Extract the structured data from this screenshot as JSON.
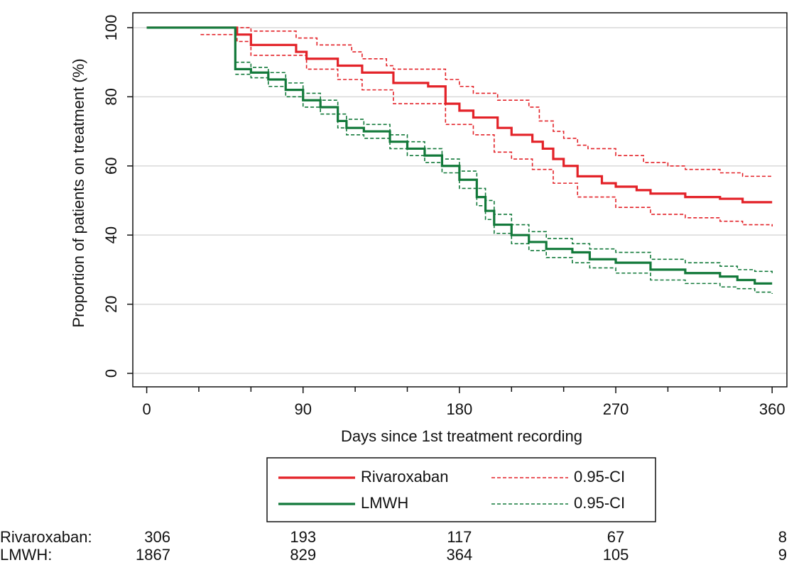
{
  "chart_data": {
    "type": "step",
    "x_label": "Days since 1st treatment recording",
    "y_label": "Proportion of patients on treatment (%)",
    "xlim": [
      -8,
      368.5
    ],
    "ylim": [
      -3.9,
      104.3
    ],
    "xticks": [
      0,
      90,
      180,
      270,
      360
    ],
    "xminorticks": [
      30,
      60,
      120,
      150,
      210,
      240,
      300,
      330
    ],
    "yticks": [
      0,
      20,
      40,
      60,
      80,
      100
    ],
    "grid": true,
    "series": [
      {
        "name": "Rivaroxaban",
        "color": "#e32228",
        "style": "solid",
        "x": [
          0,
          52,
          60,
          86,
          92,
          110,
          124,
          142,
          162,
          172,
          180,
          188,
          202,
          210,
          222,
          228,
          234,
          240,
          248,
          262,
          270,
          282,
          290,
          310,
          330,
          343,
          360
        ],
        "values": [
          100,
          98,
          95,
          93,
          91,
          89,
          87,
          84,
          83,
          78,
          76,
          74,
          71,
          69,
          67,
          65,
          62,
          60,
          57,
          55,
          54,
          53,
          52,
          51,
          50.5,
          49.5,
          49.5
        ]
      },
      {
        "name": "0.95-CI",
        "color": "#e32228",
        "style": "dashed",
        "x": [
          31,
          52,
          60,
          92,
          110,
          124,
          142,
          172,
          188,
          200,
          210,
          222,
          234,
          248,
          270,
          290,
          310,
          330,
          343,
          360
        ],
        "values": [
          98,
          96,
          92,
          88,
          85,
          82,
          78,
          72,
          69,
          64,
          62,
          59,
          55,
          51,
          48,
          46,
          45,
          44,
          43,
          42.5
        ]
      },
      {
        "name": "LMWH",
        "color": "#12793a",
        "style": "solid",
        "x": [
          0,
          51,
          60,
          70,
          80,
          90,
          100,
          110,
          115,
          125,
          140,
          150,
          160,
          170,
          180,
          190,
          195,
          200,
          210,
          220,
          230,
          245,
          255,
          270,
          290,
          310,
          330,
          340,
          350,
          360
        ],
        "values": [
          100,
          88,
          87,
          85,
          82,
          79,
          77,
          73,
          71,
          70,
          67,
          65,
          63,
          60,
          56,
          51,
          47,
          43,
          40,
          38,
          36,
          35,
          33,
          32,
          30,
          29,
          28,
          27,
          26,
          26
        ]
      },
      {
        "name": "0.95-CI",
        "color": "#12793a",
        "style": "dashed",
        "x": [
          51,
          60,
          70,
          80,
          90,
          100,
          110,
          115,
          125,
          140,
          150,
          160,
          170,
          180,
          190,
          195,
          200,
          210,
          220,
          230,
          245,
          255,
          270,
          290,
          310,
          330,
          340,
          350,
          360
        ],
        "values": [
          86.5,
          85.5,
          83,
          80,
          77,
          75,
          71,
          69,
          68,
          65,
          63,
          61,
          58,
          53.5,
          48.5,
          44.5,
          40.5,
          37.5,
          35.5,
          33.5,
          32,
          30.5,
          29,
          27,
          26,
          25,
          24.5,
          23.5,
          23
        ]
      }
    ],
    "ci_upper": [
      {
        "color": "#e32228",
        "x": [
          31,
          60,
          86,
          98,
          118,
          124,
          138,
          142,
          172,
          180,
          188,
          202,
          220,
          226,
          234,
          240,
          248,
          254,
          270,
          286,
          300,
          310,
          330,
          343,
          360
        ],
        "values": [
          100,
          99,
          97,
          95,
          93,
          91,
          89,
          88,
          85,
          83,
          81,
          79,
          77,
          73,
          70,
          68,
          66,
          65,
          63,
          61,
          60,
          59,
          58,
          57,
          57
        ]
      },
      {
        "color": "#12793a",
        "x": [
          51,
          60,
          70,
          80,
          90,
          100,
          110,
          115,
          125,
          140,
          150,
          160,
          170,
          180,
          190,
          195,
          200,
          210,
          220,
          230,
          245,
          255,
          270,
          290,
          310,
          330,
          340,
          350,
          360
        ],
        "values": [
          90,
          88.5,
          87,
          84,
          81,
          79,
          75,
          73.5,
          72,
          69,
          67,
          65,
          62,
          58.5,
          53.5,
          50,
          46,
          43,
          41,
          39,
          37.5,
          36,
          35,
          33,
          32,
          31,
          30,
          29.5,
          29
        ]
      }
    ],
    "risk_table": {
      "rows": [
        {
          "label": "Rivaroxaban:",
          "values": [
            306,
            193,
            117,
            67,
            8
          ]
        },
        {
          "label": "LMWH:",
          "values": [
            1867,
            829,
            364,
            105,
            9
          ]
        }
      ]
    }
  }
}
